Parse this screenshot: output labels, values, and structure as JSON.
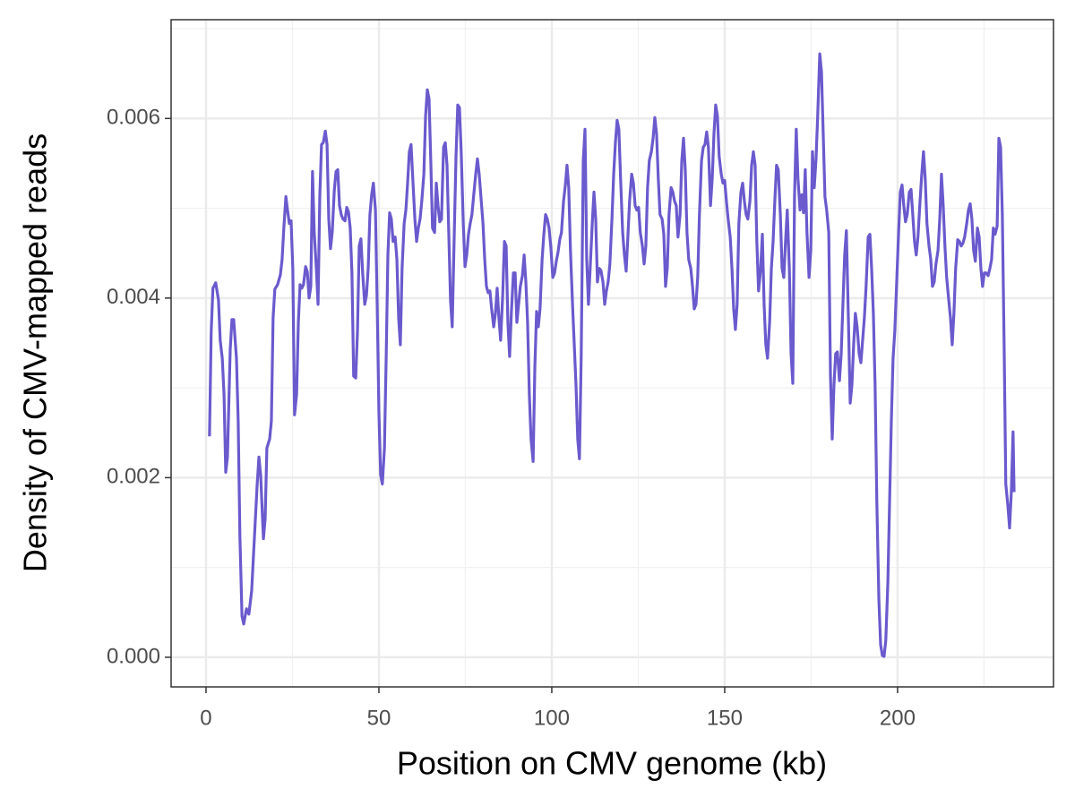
{
  "chart_data": {
    "type": "line",
    "x_label": "Position on CMV genome (kb)",
    "y_label": "Density of CMV-mapped reads",
    "color": "#6a5acd",
    "xlim": [
      -10.1,
      245.1
    ],
    "ylim": [
      -0.00033,
      0.0071
    ],
    "xticks": [
      0,
      50,
      100,
      150,
      200
    ],
    "yticks": [
      {
        "value": 0,
        "label": "0.000"
      },
      {
        "value": 0.002,
        "label": "0.002"
      },
      {
        "value": 0.004,
        "label": "0.004"
      },
      {
        "value": 0.006,
        "label": "0.006"
      }
    ],
    "x_minor_gridlines": [
      25,
      75,
      125,
      175,
      225
    ],
    "y_minor_gridlines": [
      0.001,
      0.003,
      0.005,
      0.007
    ],
    "grid": true,
    "x": [
      1,
      1.5,
      2,
      2.8,
      3.6,
      4.1,
      4.7,
      5.2,
      5.7,
      6.2,
      7,
      7.5,
      8,
      8.8,
      9.3,
      9.8,
      10.4,
      10.9,
      11.7,
      12.4,
      13.2,
      14,
      14.8,
      15.3,
      15.8,
      16.6,
      17.1,
      17.6,
      18.4,
      18.9,
      19.4,
      19.9,
      20.7,
      21.5,
      22,
      22.5,
      23.1,
      23.6,
      24.1,
      24.6,
      25.1,
      25.6,
      26.2,
      26.7,
      27.2,
      27.7,
      28.2,
      28.8,
      29.3,
      29.8,
      30.3,
      30.8,
      31.3,
      31.9,
      32.4,
      32.9,
      33.4,
      33.9,
      34.5,
      35,
      35.5,
      36,
      36.5,
      37.1,
      37.6,
      38.1,
      38.6,
      39.1,
      39.6,
      40.2,
      40.7,
      41.2,
      41.7,
      42.2,
      42.7,
      43.3,
      43.8,
      44.3,
      44.8,
      45.3,
      45.9,
      46.4,
      46.9,
      47.4,
      47.9,
      48.4,
      49,
      49.5,
      50,
      50.5,
      51,
      51.6,
      52.1,
      52.6,
      53.1,
      53.6,
      54.1,
      54.7,
      55.2,
      55.7,
      56.2,
      56.7,
      57.3,
      57.8,
      58.3,
      58.8,
      59.3,
      59.8,
      60.4,
      60.9,
      61.4,
      61.9,
      62.4,
      63,
      63.5,
      64,
      64.5,
      65,
      65.5,
      66.1,
      66.6,
      67.1,
      67.6,
      68.1,
      68.7,
      69.2,
      69.7,
      70.2,
      70.7,
      71.2,
      71.8,
      72.3,
      72.8,
      73.3,
      73.8,
      74.4,
      74.9,
      75.4,
      75.9,
      76.4,
      76.9,
      77.5,
      78,
      78.5,
      79,
      79.5,
      80.1,
      80.6,
      81.1,
      81.6,
      82.1,
      82.6,
      83.2,
      83.7,
      84.2,
      84.7,
      85.2,
      85.8,
      86.3,
      86.8,
      87.3,
      87.8,
      88.3,
      88.9,
      89.4,
      89.9,
      90.4,
      90.9,
      91.5,
      92,
      92.5,
      93,
      93.5,
      94,
      94.6,
      95.1,
      95.6,
      96.1,
      96.6,
      97.2,
      97.7,
      98.2,
      98.7,
      99.2,
      99.7,
      100.3,
      100.8,
      101.3,
      101.8,
      102.3,
      102.8,
      103.4,
      103.9,
      104.4,
      104.9,
      105.4,
      106,
      106.5,
      107,
      107.5,
      108,
      108.5,
      109.1,
      109.6,
      110.1,
      110.6,
      111.1,
      111.7,
      112.2,
      112.7,
      113.2,
      113.7,
      114.2,
      114.8,
      115.3,
      115.8,
      116.3,
      116.8,
      117.4,
      117.9,
      118.4,
      118.9,
      119.4,
      119.9,
      120.5,
      121,
      121.5,
      122,
      122.5,
      123.1,
      123.6,
      124.1,
      124.6,
      125.1,
      125.6,
      126.2,
      126.7,
      127.2,
      127.7,
      128.2,
      128.8,
      129.3,
      129.8,
      130.3,
      130.8,
      131.3,
      131.9,
      132.4,
      132.9,
      133.4,
      133.9,
      134.5,
      135,
      135.5,
      136,
      136.5,
      137.1,
      137.6,
      138.1,
      138.6,
      139.1,
      139.6,
      140.2,
      140.7,
      141.2,
      141.7,
      142.2,
      142.7,
      143.3,
      143.8,
      144.3,
      144.8,
      145.3,
      145.9,
      146.4,
      146.9,
      147.4,
      147.9,
      148.4,
      149,
      149.5,
      150,
      150.5,
      151,
      151.6,
      152.1,
      152.6,
      153.1,
      153.6,
      154.1,
      154.7,
      155.2,
      155.7,
      156.2,
      156.7,
      157.3,
      157.8,
      158.3,
      158.8,
      159.3,
      159.8,
      160.4,
      160.9,
      161.4,
      161.9,
      162.4,
      163,
      163.5,
      164,
      164.5,
      165,
      165.5,
      166.1,
      166.6,
      167.1,
      167.6,
      168.1,
      168.7,
      169.2,
      169.7,
      170.2,
      170.7,
      171.2,
      171.8,
      172.3,
      172.8,
      173.3,
      173.8,
      174.4,
      174.9,
      175.4,
      175.9,
      176.4,
      176.9,
      177.5,
      178,
      178.5,
      179,
      179.5,
      180.1,
      180.6,
      181.1,
      181.6,
      182.1,
      182.6,
      183.2,
      183.7,
      184.2,
      184.7,
      185.2,
      185.8,
      186.3,
      186.8,
      187.3,
      187.8,
      188.3,
      188.9,
      189.4,
      189.9,
      190.4,
      190.9,
      191.5,
      192,
      192.5,
      193,
      193.5,
      194,
      194.6,
      195.1,
      195.6,
      196.1,
      196.6,
      197.2,
      197.7,
      198.2,
      198.7,
      199.2,
      199.7,
      200.3,
      200.8,
      201.3,
      201.8,
      202.3,
      202.8,
      203.4,
      203.9,
      204.4,
      204.9,
      205.4,
      205.9,
      206.5,
      207,
      207.5,
      208,
      208.5,
      209.1,
      209.6,
      210.1,
      210.6,
      211.1,
      211.7,
      212.2,
      212.7,
      213.2,
      213.7,
      214.2,
      214.8,
      215.3,
      215.8,
      216.3,
      216.8,
      217.4,
      217.9,
      218.4,
      218.9,
      219.4,
      220,
      220.5,
      221,
      221.5,
      222,
      222.5,
      223.1,
      223.6,
      224.1,
      224.6,
      225.1,
      225.6,
      226.2,
      226.7,
      227.2,
      227.7,
      228.2,
      228.8,
      229.3,
      229.8,
      230.3,
      230.8,
      231.3,
      231.9,
      232.4,
      232.9,
      233.4,
      233.7
    ],
    "values": [
      0.00246,
      0.00363,
      0.00411,
      0.00417,
      0.00398,
      0.00353,
      0.00333,
      0.00293,
      0.00206,
      0.00223,
      0.00343,
      0.00376,
      0.00376,
      0.00333,
      0.00263,
      0.00134,
      0.00046,
      0.00037,
      0.00054,
      0.00048,
      0.00074,
      0.00134,
      0.00193,
      0.00223,
      0.00203,
      0.00132,
      0.00154,
      0.00233,
      0.00243,
      0.00263,
      0.00378,
      0.0041,
      0.00415,
      0.00426,
      0.00443,
      0.00478,
      0.00513,
      0.00497,
      0.00483,
      0.00486,
      0.00433,
      0.0027,
      0.00293,
      0.00373,
      0.00415,
      0.00411,
      0.00415,
      0.00435,
      0.00429,
      0.004,
      0.00413,
      0.00541,
      0.00473,
      0.00433,
      0.00393,
      0.00513,
      0.00571,
      0.00573,
      0.00586,
      0.00571,
      0.00488,
      0.00455,
      0.00473,
      0.0052,
      0.00541,
      0.00543,
      0.00503,
      0.00493,
      0.00488,
      0.00486,
      0.00501,
      0.00496,
      0.00478,
      0.00428,
      0.00313,
      0.00311,
      0.00363,
      0.00458,
      0.00466,
      0.00428,
      0.00393,
      0.00403,
      0.00433,
      0.00493,
      0.00515,
      0.00528,
      0.00498,
      0.00393,
      0.00273,
      0.00203,
      0.00193,
      0.00233,
      0.00333,
      0.00448,
      0.00495,
      0.00488,
      0.00463,
      0.00468,
      0.00443,
      0.00378,
      0.00348,
      0.00433,
      0.00483,
      0.00498,
      0.00528,
      0.00563,
      0.00571,
      0.00533,
      0.00488,
      0.00463,
      0.00478,
      0.00488,
      0.00508,
      0.00538,
      0.00603,
      0.00632,
      0.00622,
      0.00553,
      0.00478,
      0.00473,
      0.00528,
      0.00503,
      0.00485,
      0.00488,
      0.00568,
      0.00573,
      0.00548,
      0.00473,
      0.00398,
      0.00368,
      0.00473,
      0.00558,
      0.00615,
      0.00612,
      0.00563,
      0.00483,
      0.00435,
      0.00448,
      0.00471,
      0.00483,
      0.00493,
      0.00518,
      0.00538,
      0.00555,
      0.00538,
      0.00513,
      0.00483,
      0.00443,
      0.00413,
      0.00406,
      0.00408,
      0.00388,
      0.00368,
      0.00383,
      0.00411,
      0.00378,
      0.00353,
      0.00403,
      0.00463,
      0.00458,
      0.00373,
      0.00335,
      0.00383,
      0.00428,
      0.00428,
      0.00373,
      0.00393,
      0.00413,
      0.00425,
      0.00448,
      0.00418,
      0.00373,
      0.00293,
      0.00243,
      0.00218,
      0.00323,
      0.00385,
      0.00368,
      0.00388,
      0.00443,
      0.00471,
      0.00493,
      0.00488,
      0.00478,
      0.00458,
      0.00423,
      0.00428,
      0.00441,
      0.00451,
      0.00465,
      0.00473,
      0.00508,
      0.00525,
      0.00548,
      0.00523,
      0.00453,
      0.00393,
      0.00348,
      0.00303,
      0.00243,
      0.00221,
      0.00333,
      0.00553,
      0.00588,
      0.00443,
      0.00393,
      0.00433,
      0.00483,
      0.00518,
      0.00488,
      0.00418,
      0.00433,
      0.00431,
      0.00418,
      0.00393,
      0.00408,
      0.00418,
      0.00438,
      0.00488,
      0.00538,
      0.00573,
      0.00598,
      0.00588,
      0.00533,
      0.00473,
      0.00448,
      0.0043,
      0.00468,
      0.00508,
      0.00538,
      0.00528,
      0.00503,
      0.00498,
      0.00501,
      0.00473,
      0.00458,
      0.00438,
      0.00458,
      0.00523,
      0.00553,
      0.00563,
      0.00578,
      0.00601,
      0.00583,
      0.00533,
      0.00493,
      0.00488,
      0.00471,
      0.00413,
      0.00433,
      0.00493,
      0.00523,
      0.00518,
      0.00508,
      0.00503,
      0.00468,
      0.00493,
      0.00553,
      0.00578,
      0.00543,
      0.00473,
      0.00443,
      0.00433,
      0.00413,
      0.00388,
      0.00393,
      0.00423,
      0.00493,
      0.00553,
      0.00568,
      0.00571,
      0.00585,
      0.00568,
      0.00503,
      0.00533,
      0.00583,
      0.00615,
      0.00603,
      0.00558,
      0.00538,
      0.00528,
      0.00531,
      0.00508,
      0.00488,
      0.00468,
      0.00433,
      0.00388,
      0.00365,
      0.00393,
      0.00483,
      0.00518,
      0.00528,
      0.00508,
      0.00493,
      0.00488,
      0.00508,
      0.00548,
      0.00563,
      0.00548,
      0.00463,
      0.00408,
      0.00433,
      0.00471,
      0.00393,
      0.00348,
      0.00333,
      0.00373,
      0.00433,
      0.00463,
      0.00508,
      0.00548,
      0.00543,
      0.00493,
      0.00433,
      0.00423,
      0.00463,
      0.00498,
      0.00433,
      0.00338,
      0.00305,
      0.00513,
      0.00588,
      0.00533,
      0.00498,
      0.00515,
      0.00495,
      0.00543,
      0.00473,
      0.00423,
      0.00453,
      0.00563,
      0.00523,
      0.00553,
      0.00603,
      0.00672,
      0.00652,
      0.00583,
      0.00513,
      0.00498,
      0.00473,
      0.00313,
      0.00243,
      0.00303,
      0.00338,
      0.0034,
      0.00308,
      0.00338,
      0.00393,
      0.00448,
      0.00475,
      0.00373,
      0.00283,
      0.00303,
      0.00348,
      0.00383,
      0.00368,
      0.00338,
      0.00328,
      0.00353,
      0.00378,
      0.00413,
      0.00468,
      0.00471,
      0.00433,
      0.00383,
      0.00303,
      0.00174,
      0.00064,
      0.00014,
      2e-05,
      1e-05,
      0.00019,
      0.00084,
      0.00174,
      0.00263,
      0.00333,
      0.00363,
      0.00413,
      0.00473,
      0.00518,
      0.00526,
      0.00503,
      0.00485,
      0.00493,
      0.00518,
      0.00521,
      0.00493,
      0.00463,
      0.00448,
      0.00468,
      0.00508,
      0.00538,
      0.00563,
      0.00533,
      0.00483,
      0.00458,
      0.00443,
      0.00413,
      0.00418,
      0.00438,
      0.00453,
      0.00488,
      0.00538,
      0.00503,
      0.00458,
      0.00423,
      0.00398,
      0.00378,
      0.00348,
      0.00383,
      0.00433,
      0.00465,
      0.00463,
      0.00458,
      0.00461,
      0.00468,
      0.00483,
      0.00498,
      0.00505,
      0.00488,
      0.00453,
      0.00441,
      0.00478,
      0.00468,
      0.00433,
      0.00413,
      0.00428,
      0.00428,
      0.00425,
      0.00433,
      0.00443,
      0.00478,
      0.00471,
      0.0048,
      0.00578,
      0.00568,
      0.00493,
      0.00353,
      0.00193,
      0.00169,
      0.00144,
      0.00184,
      0.00251,
      0.00184
    ]
  }
}
